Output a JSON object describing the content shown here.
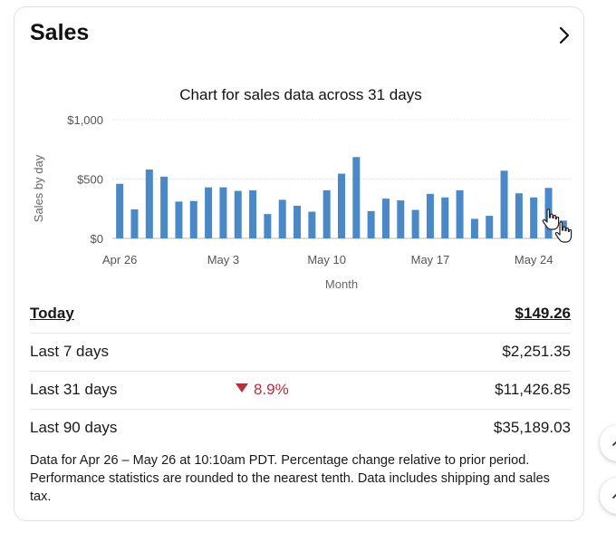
{
  "card": {
    "title": "Sales"
  },
  "chart_data": {
    "type": "bar",
    "title": "Chart for sales data across 31 days",
    "xlabel": "Month",
    "ylabel": "Sales by day",
    "ylim": [
      0,
      1000
    ],
    "y_ticks": [
      {
        "value": 0,
        "label": "$0"
      },
      {
        "value": 500,
        "label": "$500"
      },
      {
        "value": 1000,
        "label": "$1,000"
      }
    ],
    "x_ticks": [
      {
        "index": 0,
        "label": "Apr 26"
      },
      {
        "index": 7,
        "label": "May 3"
      },
      {
        "index": 14,
        "label": "May 10"
      },
      {
        "index": 21,
        "label": "May 17"
      },
      {
        "index": 28,
        "label": "May 24"
      }
    ],
    "categories": [
      "Apr 26",
      "Apr 27",
      "Apr 28",
      "Apr 29",
      "Apr 30",
      "May 1",
      "May 2",
      "May 3",
      "May 4",
      "May 5",
      "May 6",
      "May 7",
      "May 8",
      "May 9",
      "May 10",
      "May 11",
      "May 12",
      "May 13",
      "May 14",
      "May 15",
      "May 16",
      "May 17",
      "May 18",
      "May 19",
      "May 20",
      "May 21",
      "May 22",
      "May 23",
      "May 24",
      "May 25",
      "May 26"
    ],
    "values": [
      460,
      245,
      580,
      520,
      310,
      315,
      430,
      430,
      400,
      405,
      205,
      325,
      275,
      225,
      405,
      545,
      685,
      230,
      335,
      320,
      240,
      375,
      345,
      405,
      165,
      190,
      570,
      380,
      345,
      425,
      150
    ],
    "grid": true,
    "legend": "none",
    "bar_color": "#4a88c8"
  },
  "summary": {
    "rows": [
      {
        "label": "Today",
        "value": "$149.26",
        "change": ""
      },
      {
        "label": "Last 7 days",
        "value": "$2,251.35",
        "change": ""
      },
      {
        "label": "Last 31 days",
        "value": "$11,426.85",
        "change": "8.9%"
      },
      {
        "label": "Last 90 days",
        "value": "$35,189.03",
        "change": ""
      }
    ],
    "change_color": "#c5283d"
  },
  "footnote": "Data for Apr 26 – May 26 at 10:10am PDT. Percentage change relative to prior period. Performance statistics are rounded to the nearest tenth. Data includes shipping and sales tax.",
  "icons": {
    "chevron": "chevron-right-icon",
    "cursor": "hand-pointer-icon",
    "fab_up": "chevron-up-icon",
    "fab_down": "chevron-up-icon"
  }
}
